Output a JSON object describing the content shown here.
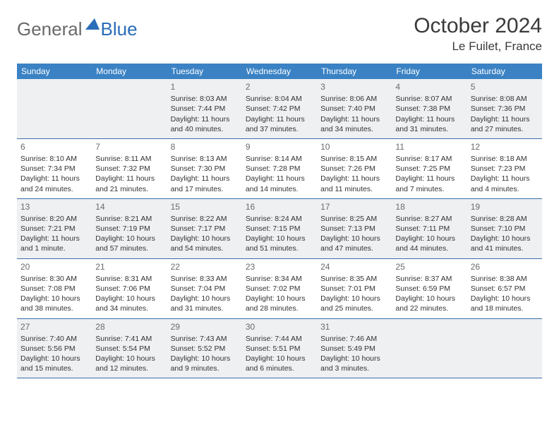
{
  "brand": {
    "part1": "General",
    "part2": "Blue"
  },
  "title": "October 2024",
  "location": "Le Fuilet, France",
  "colors": {
    "header_bg": "#3a82c4",
    "header_text": "#ffffff",
    "row_divider": "#3a6ea8",
    "shaded_cell": "#eef0f2",
    "text": "#333333",
    "brand_gray": "#6a6a6a",
    "brand_blue": "#2a6db8"
  },
  "day_names": [
    "Sunday",
    "Monday",
    "Tuesday",
    "Wednesday",
    "Thursday",
    "Friday",
    "Saturday"
  ],
  "weeks": [
    {
      "shaded": true,
      "days": [
        {
          "n": "",
          "empty": true
        },
        {
          "n": "",
          "empty": true
        },
        {
          "n": "1",
          "sunrise": "Sunrise: 8:03 AM",
          "sunset": "Sunset: 7:44 PM",
          "daylight": "Daylight: 11 hours and 40 minutes."
        },
        {
          "n": "2",
          "sunrise": "Sunrise: 8:04 AM",
          "sunset": "Sunset: 7:42 PM",
          "daylight": "Daylight: 11 hours and 37 minutes."
        },
        {
          "n": "3",
          "sunrise": "Sunrise: 8:06 AM",
          "sunset": "Sunset: 7:40 PM",
          "daylight": "Daylight: 11 hours and 34 minutes."
        },
        {
          "n": "4",
          "sunrise": "Sunrise: 8:07 AM",
          "sunset": "Sunset: 7:38 PM",
          "daylight": "Daylight: 11 hours and 31 minutes."
        },
        {
          "n": "5",
          "sunrise": "Sunrise: 8:08 AM",
          "sunset": "Sunset: 7:36 PM",
          "daylight": "Daylight: 11 hours and 27 minutes."
        }
      ]
    },
    {
      "shaded": false,
      "days": [
        {
          "n": "6",
          "sunrise": "Sunrise: 8:10 AM",
          "sunset": "Sunset: 7:34 PM",
          "daylight": "Daylight: 11 hours and 24 minutes."
        },
        {
          "n": "7",
          "sunrise": "Sunrise: 8:11 AM",
          "sunset": "Sunset: 7:32 PM",
          "daylight": "Daylight: 11 hours and 21 minutes."
        },
        {
          "n": "8",
          "sunrise": "Sunrise: 8:13 AM",
          "sunset": "Sunset: 7:30 PM",
          "daylight": "Daylight: 11 hours and 17 minutes."
        },
        {
          "n": "9",
          "sunrise": "Sunrise: 8:14 AM",
          "sunset": "Sunset: 7:28 PM",
          "daylight": "Daylight: 11 hours and 14 minutes."
        },
        {
          "n": "10",
          "sunrise": "Sunrise: 8:15 AM",
          "sunset": "Sunset: 7:26 PM",
          "daylight": "Daylight: 11 hours and 11 minutes."
        },
        {
          "n": "11",
          "sunrise": "Sunrise: 8:17 AM",
          "sunset": "Sunset: 7:25 PM",
          "daylight": "Daylight: 11 hours and 7 minutes."
        },
        {
          "n": "12",
          "sunrise": "Sunrise: 8:18 AM",
          "sunset": "Sunset: 7:23 PM",
          "daylight": "Daylight: 11 hours and 4 minutes."
        }
      ]
    },
    {
      "shaded": true,
      "days": [
        {
          "n": "13",
          "sunrise": "Sunrise: 8:20 AM",
          "sunset": "Sunset: 7:21 PM",
          "daylight": "Daylight: 11 hours and 1 minute."
        },
        {
          "n": "14",
          "sunrise": "Sunrise: 8:21 AM",
          "sunset": "Sunset: 7:19 PM",
          "daylight": "Daylight: 10 hours and 57 minutes."
        },
        {
          "n": "15",
          "sunrise": "Sunrise: 8:22 AM",
          "sunset": "Sunset: 7:17 PM",
          "daylight": "Daylight: 10 hours and 54 minutes."
        },
        {
          "n": "16",
          "sunrise": "Sunrise: 8:24 AM",
          "sunset": "Sunset: 7:15 PM",
          "daylight": "Daylight: 10 hours and 51 minutes."
        },
        {
          "n": "17",
          "sunrise": "Sunrise: 8:25 AM",
          "sunset": "Sunset: 7:13 PM",
          "daylight": "Daylight: 10 hours and 47 minutes."
        },
        {
          "n": "18",
          "sunrise": "Sunrise: 8:27 AM",
          "sunset": "Sunset: 7:11 PM",
          "daylight": "Daylight: 10 hours and 44 minutes."
        },
        {
          "n": "19",
          "sunrise": "Sunrise: 8:28 AM",
          "sunset": "Sunset: 7:10 PM",
          "daylight": "Daylight: 10 hours and 41 minutes."
        }
      ]
    },
    {
      "shaded": false,
      "days": [
        {
          "n": "20",
          "sunrise": "Sunrise: 8:30 AM",
          "sunset": "Sunset: 7:08 PM",
          "daylight": "Daylight: 10 hours and 38 minutes."
        },
        {
          "n": "21",
          "sunrise": "Sunrise: 8:31 AM",
          "sunset": "Sunset: 7:06 PM",
          "daylight": "Daylight: 10 hours and 34 minutes."
        },
        {
          "n": "22",
          "sunrise": "Sunrise: 8:33 AM",
          "sunset": "Sunset: 7:04 PM",
          "daylight": "Daylight: 10 hours and 31 minutes."
        },
        {
          "n": "23",
          "sunrise": "Sunrise: 8:34 AM",
          "sunset": "Sunset: 7:02 PM",
          "daylight": "Daylight: 10 hours and 28 minutes."
        },
        {
          "n": "24",
          "sunrise": "Sunrise: 8:35 AM",
          "sunset": "Sunset: 7:01 PM",
          "daylight": "Daylight: 10 hours and 25 minutes."
        },
        {
          "n": "25",
          "sunrise": "Sunrise: 8:37 AM",
          "sunset": "Sunset: 6:59 PM",
          "daylight": "Daylight: 10 hours and 22 minutes."
        },
        {
          "n": "26",
          "sunrise": "Sunrise: 8:38 AM",
          "sunset": "Sunset: 6:57 PM",
          "daylight": "Daylight: 10 hours and 18 minutes."
        }
      ]
    },
    {
      "shaded": true,
      "days": [
        {
          "n": "27",
          "sunrise": "Sunrise: 7:40 AM",
          "sunset": "Sunset: 5:56 PM",
          "daylight": "Daylight: 10 hours and 15 minutes."
        },
        {
          "n": "28",
          "sunrise": "Sunrise: 7:41 AM",
          "sunset": "Sunset: 5:54 PM",
          "daylight": "Daylight: 10 hours and 12 minutes."
        },
        {
          "n": "29",
          "sunrise": "Sunrise: 7:43 AM",
          "sunset": "Sunset: 5:52 PM",
          "daylight": "Daylight: 10 hours and 9 minutes."
        },
        {
          "n": "30",
          "sunrise": "Sunrise: 7:44 AM",
          "sunset": "Sunset: 5:51 PM",
          "daylight": "Daylight: 10 hours and 6 minutes."
        },
        {
          "n": "31",
          "sunrise": "Sunrise: 7:46 AM",
          "sunset": "Sunset: 5:49 PM",
          "daylight": "Daylight: 10 hours and 3 minutes."
        },
        {
          "n": "",
          "empty": true
        },
        {
          "n": "",
          "empty": true
        }
      ]
    }
  ]
}
